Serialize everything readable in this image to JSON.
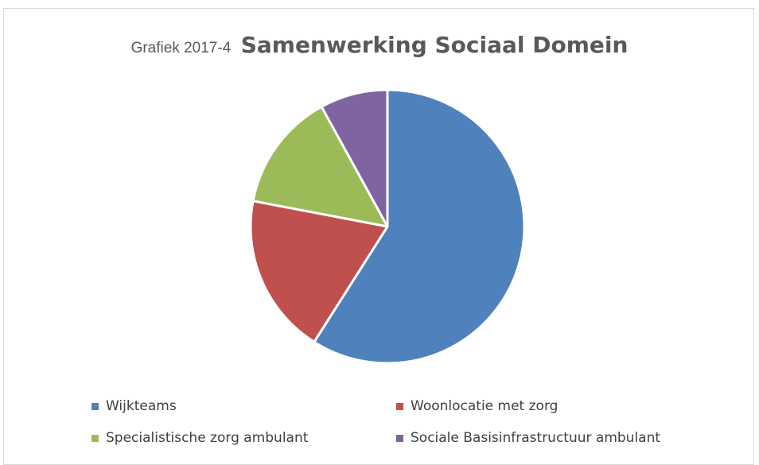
{
  "title_prefix": "Grafiek 2017-4",
  "title": "Samenwerking Sociaal Domein",
  "chart_data": {
    "type": "pie",
    "title": "Samenwerking Sociaal Domein",
    "categories": [
      "Wijkteams",
      "Woonlocatie met zorg",
      "Specialistische zorg ambulant",
      "Sociale Basisinfrastructuur ambulant"
    ],
    "values": [
      59,
      19,
      14,
      8
    ],
    "colors": [
      "#4f81bd",
      "#c0504d",
      "#9bbb59",
      "#8064a2"
    ],
    "legend_position": "bottom"
  },
  "legend": [
    {
      "label": "Wijkteams",
      "color": "#4f81bd"
    },
    {
      "label": "Woonlocatie met zorg",
      "color": "#c0504d"
    },
    {
      "label": "Specialistische zorg ambulant",
      "color": "#9bbb59"
    },
    {
      "label": "Sociale Basisinfrastructuur ambulant",
      "color": "#8064a2"
    }
  ]
}
